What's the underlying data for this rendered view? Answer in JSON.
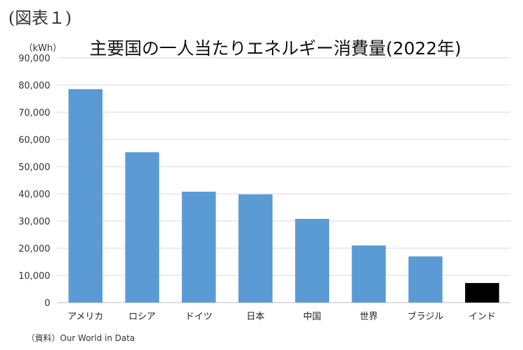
{
  "figure_label": "(図表１)",
  "chart_data": {
    "type": "bar",
    "title": "主要国の一人当たりエネルギー消費量(2022年)",
    "unit_label": "（kWh）",
    "xlabel": "",
    "ylabel": "",
    "ylim": [
      0,
      90000
    ],
    "yticks": [
      "0",
      "10,000",
      "20,000",
      "30,000",
      "40,000",
      "50,000",
      "60,000",
      "70,000",
      "80,000",
      "90,000"
    ],
    "categories": [
      "アメリカ",
      "ロシア",
      "ドイツ",
      "日本",
      "中国",
      "世界",
      "ブラジル",
      "インド"
    ],
    "values": [
      78500,
      55300,
      40800,
      39800,
      30800,
      21000,
      17000,
      7200
    ],
    "bar_colors": [
      "#5b9bd5",
      "#5b9bd5",
      "#5b9bd5",
      "#5b9bd5",
      "#5b9bd5",
      "#5b9bd5",
      "#5b9bd5",
      "#000000"
    ],
    "grid": true,
    "legend": "none"
  },
  "source": "（資料）Our World in Data"
}
